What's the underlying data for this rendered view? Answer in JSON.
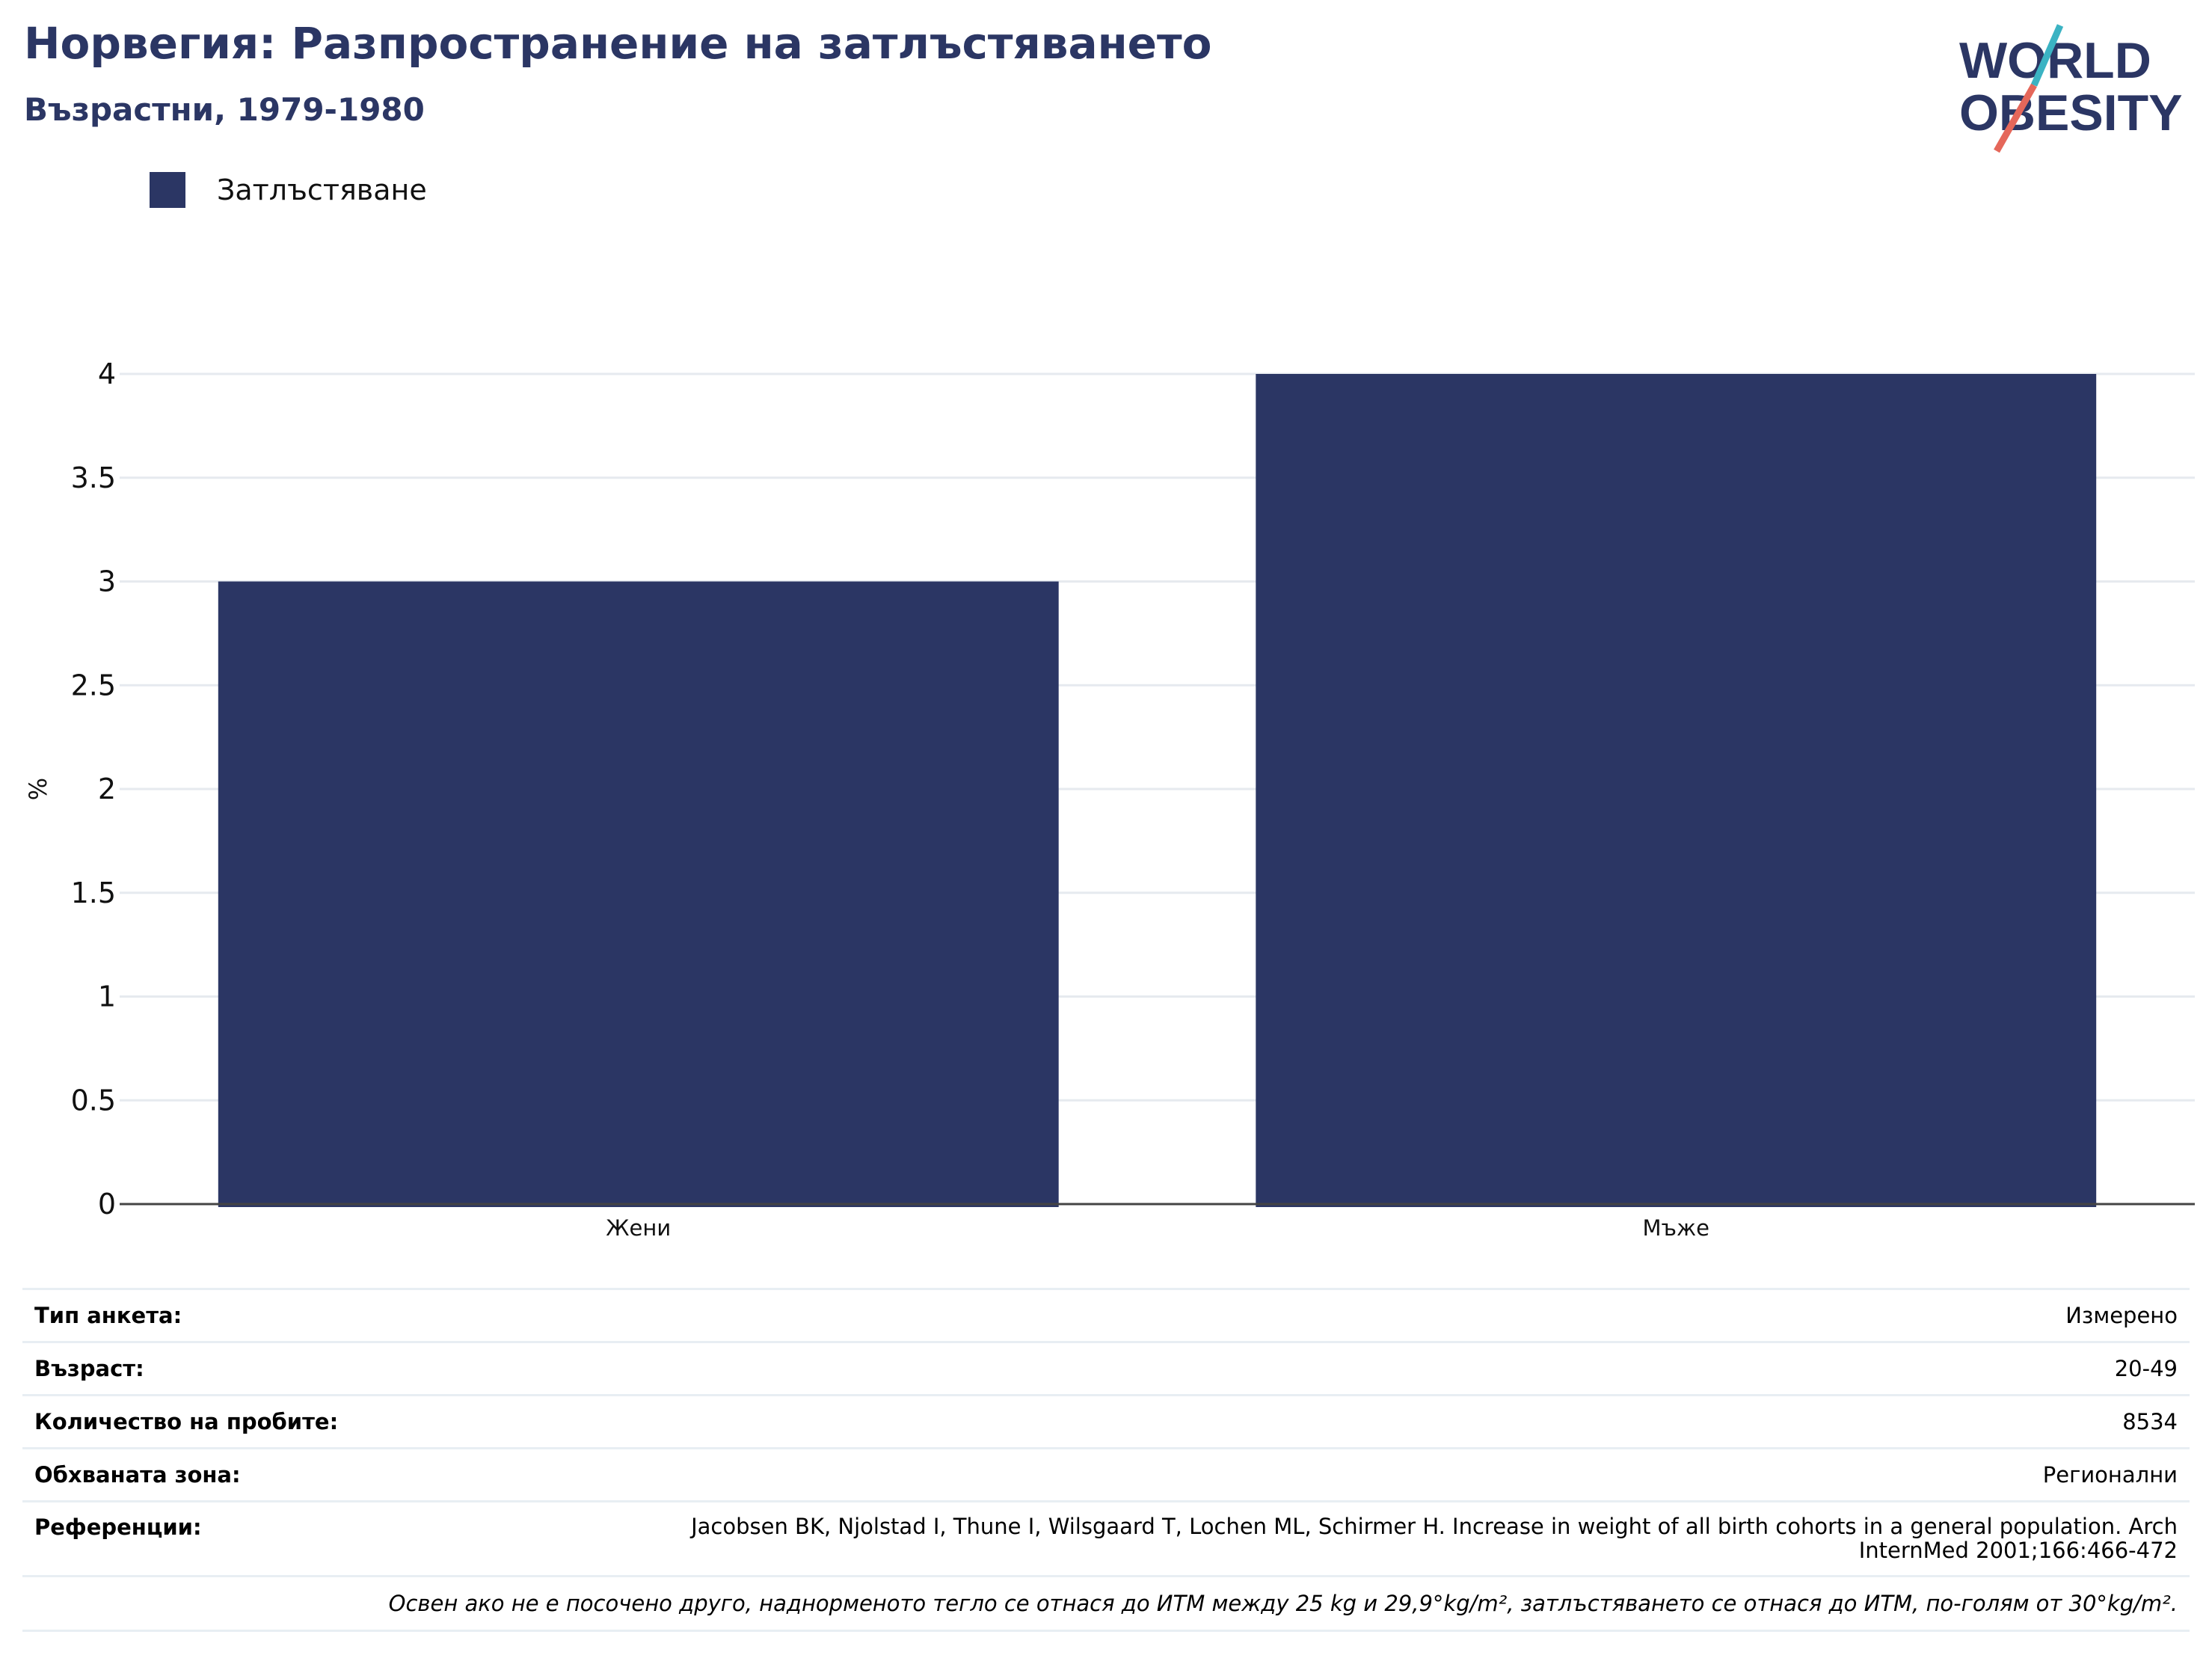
{
  "header": {
    "title": "Норвегия: Разпространение на затлъстяването",
    "subtitle": "Възрастни, 1979-1980"
  },
  "logo": {
    "line1": "WORLD",
    "line2": "OBESITY",
    "colors": {
      "navy": "#2b3664",
      "teal": "#3bb3c3",
      "coral": "#e5675a"
    }
  },
  "legend": {
    "label": "Затлъстяване",
    "color": "#2b3664"
  },
  "chart_data": {
    "type": "bar",
    "categories": [
      "Жени",
      "Мъже"
    ],
    "series": [
      {
        "name": "Затлъстяване",
        "values": [
          3.0,
          4.0
        ],
        "color": "#2b3664"
      }
    ],
    "ylabel": "%",
    "ylim": [
      0,
      4
    ],
    "yticks": [
      0,
      0.5,
      1,
      1.5,
      2,
      2.5,
      3,
      3.5,
      4
    ],
    "ytick_labels": [
      "0",
      "0.5",
      "1",
      "1.5",
      "2",
      "2.5",
      "3",
      "3.5",
      "4"
    ],
    "grid": true,
    "legend_position": "top-left"
  },
  "info": {
    "survey_type": {
      "label": "Тип анкета:",
      "value": "Измерено"
    },
    "age": {
      "label": "Възраст:",
      "value": "20-49"
    },
    "sample_size": {
      "label": "Количество на пробите:",
      "value": "8534"
    },
    "coverage": {
      "label": "Обхваната зона:",
      "value": "Регионални"
    },
    "references": {
      "label": "Референции:",
      "value": "Jacobsen BK, Njolstad I, Thune I, Wilsgaard T, Lochen ML, Schirmer H. Increase in weight of all birth cohorts in a general population. Arch InternMed 2001;166:466-472"
    },
    "note": "Освен ако не е посочено друго, наднорменото тегло се отнася до ИТМ между 25 kg и 29,9°kg/m², затлъстяването се отнася до ИТМ, по-голям от 30°kg/m²."
  }
}
